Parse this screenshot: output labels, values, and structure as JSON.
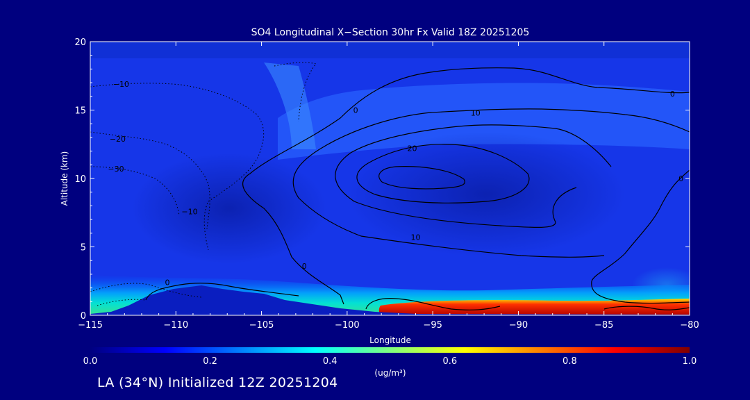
{
  "chart_data": {
    "type": "heatmap",
    "title": "SO4 Longitudinal X−Section 30hr  Fx Valid 18Z 20251205",
    "xlabel": "Longitude",
    "ylabel": "Altitude (km)",
    "xlim": [
      -115,
      -80
    ],
    "ylim": [
      0,
      20
    ],
    "x_ticks": [
      -115,
      -110,
      -105,
      -100,
      -95,
      -90,
      -85,
      -80
    ],
    "x_tick_labels": [
      "−115",
      "−110",
      "−105",
      "−100",
      "−95",
      "−90",
      "−85",
      "−80"
    ],
    "y_ticks": [
      0,
      5,
      10,
      15,
      20
    ],
    "y_tick_labels": [
      "0",
      "5",
      "10",
      "15",
      "20"
    ],
    "colorbar": {
      "label": "(ug/m³)",
      "min": 0.0,
      "max": 1.0,
      "ticks": [
        0.0,
        0.2,
        0.4,
        0.6,
        0.8,
        1.0
      ],
      "tick_labels": [
        "0.0",
        "0.2",
        "0.4",
        "0.6",
        "0.8",
        "1.0"
      ],
      "colors": [
        "#00007f",
        "#0000ff",
        "#007fff",
        "#00ffff",
        "#7fff7f",
        "#ffff00",
        "#ff7f00",
        "#ff0000",
        "#7f0000"
      ]
    },
    "terrain_profile": [
      {
        "lon": -115,
        "alt": 0.1
      },
      {
        "lon": -113,
        "alt": 0.4
      },
      {
        "lon": -111,
        "alt": 1.2
      },
      {
        "lon": -109,
        "alt": 2.1
      },
      {
        "lon": -108,
        "alt": 1.9
      },
      {
        "lon": -106,
        "alt": 1.6
      },
      {
        "lon": -104,
        "alt": 1.0
      },
      {
        "lon": -101,
        "alt": 0.6
      },
      {
        "lon": -98,
        "alt": 0.3
      },
      {
        "lon": -80,
        "alt": 0.1
      }
    ],
    "high_concentration_layer": {
      "lon_range": [
        -97.5,
        -80
      ],
      "alt_range": [
        0,
        0.8
      ],
      "value": 1.0
    },
    "contour_labels": [
      {
        "text": "0",
        "lon": -110.5,
        "alt": 2.4
      },
      {
        "text": "0",
        "lon": -102.5,
        "alt": 3.6
      },
      {
        "text": "0",
        "lon": -99.5,
        "alt": 15.0
      },
      {
        "text": "0",
        "lon": -81,
        "alt": 16.2
      },
      {
        "text": "0",
        "lon": -80.5,
        "alt": 10.0
      },
      {
        "text": "10",
        "lon": -92.5,
        "alt": 14.8
      },
      {
        "text": "10",
        "lon": -96,
        "alt": 5.7
      },
      {
        "text": "20",
        "lon": -96.2,
        "alt": 12.2
      },
      {
        "text": "−10",
        "lon": -113.2,
        "alt": 16.9
      },
      {
        "text": "−20",
        "lon": -113.4,
        "alt": 12.9
      },
      {
        "text": "−30",
        "lon": -113.5,
        "alt": 10.7
      },
      {
        "text": "−10",
        "lon": -109.2,
        "alt": 7.6
      }
    ],
    "caption": "LA (34°N) Initialized 12Z 20251204"
  }
}
